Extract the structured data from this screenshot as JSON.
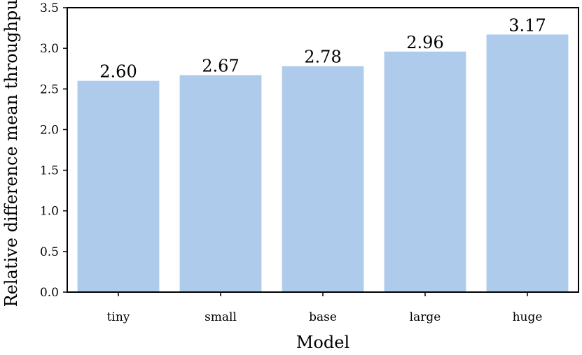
{
  "chart_data": {
    "type": "bar",
    "title": "",
    "xlabel": "Model",
    "ylabel": "Relative difference mean throughput",
    "categories": [
      "tiny",
      "small",
      "base",
      "large",
      "huge"
    ],
    "values": [
      2.6,
      2.67,
      2.78,
      2.96,
      3.17
    ],
    "value_labels": [
      "2.60",
      "2.67",
      "2.78",
      "2.96",
      "3.17"
    ],
    "ylim": [
      0,
      3.5
    ],
    "yticks": [
      0.0,
      0.5,
      1.0,
      1.5,
      2.0,
      2.5,
      3.0,
      3.5
    ],
    "ytick_labels": [
      "0.0",
      "0.5",
      "1.0",
      "1.5",
      "2.0",
      "2.5",
      "3.0",
      "3.5"
    ],
    "grid": false,
    "legend": "none",
    "bar_color": "#aecbeb"
  }
}
